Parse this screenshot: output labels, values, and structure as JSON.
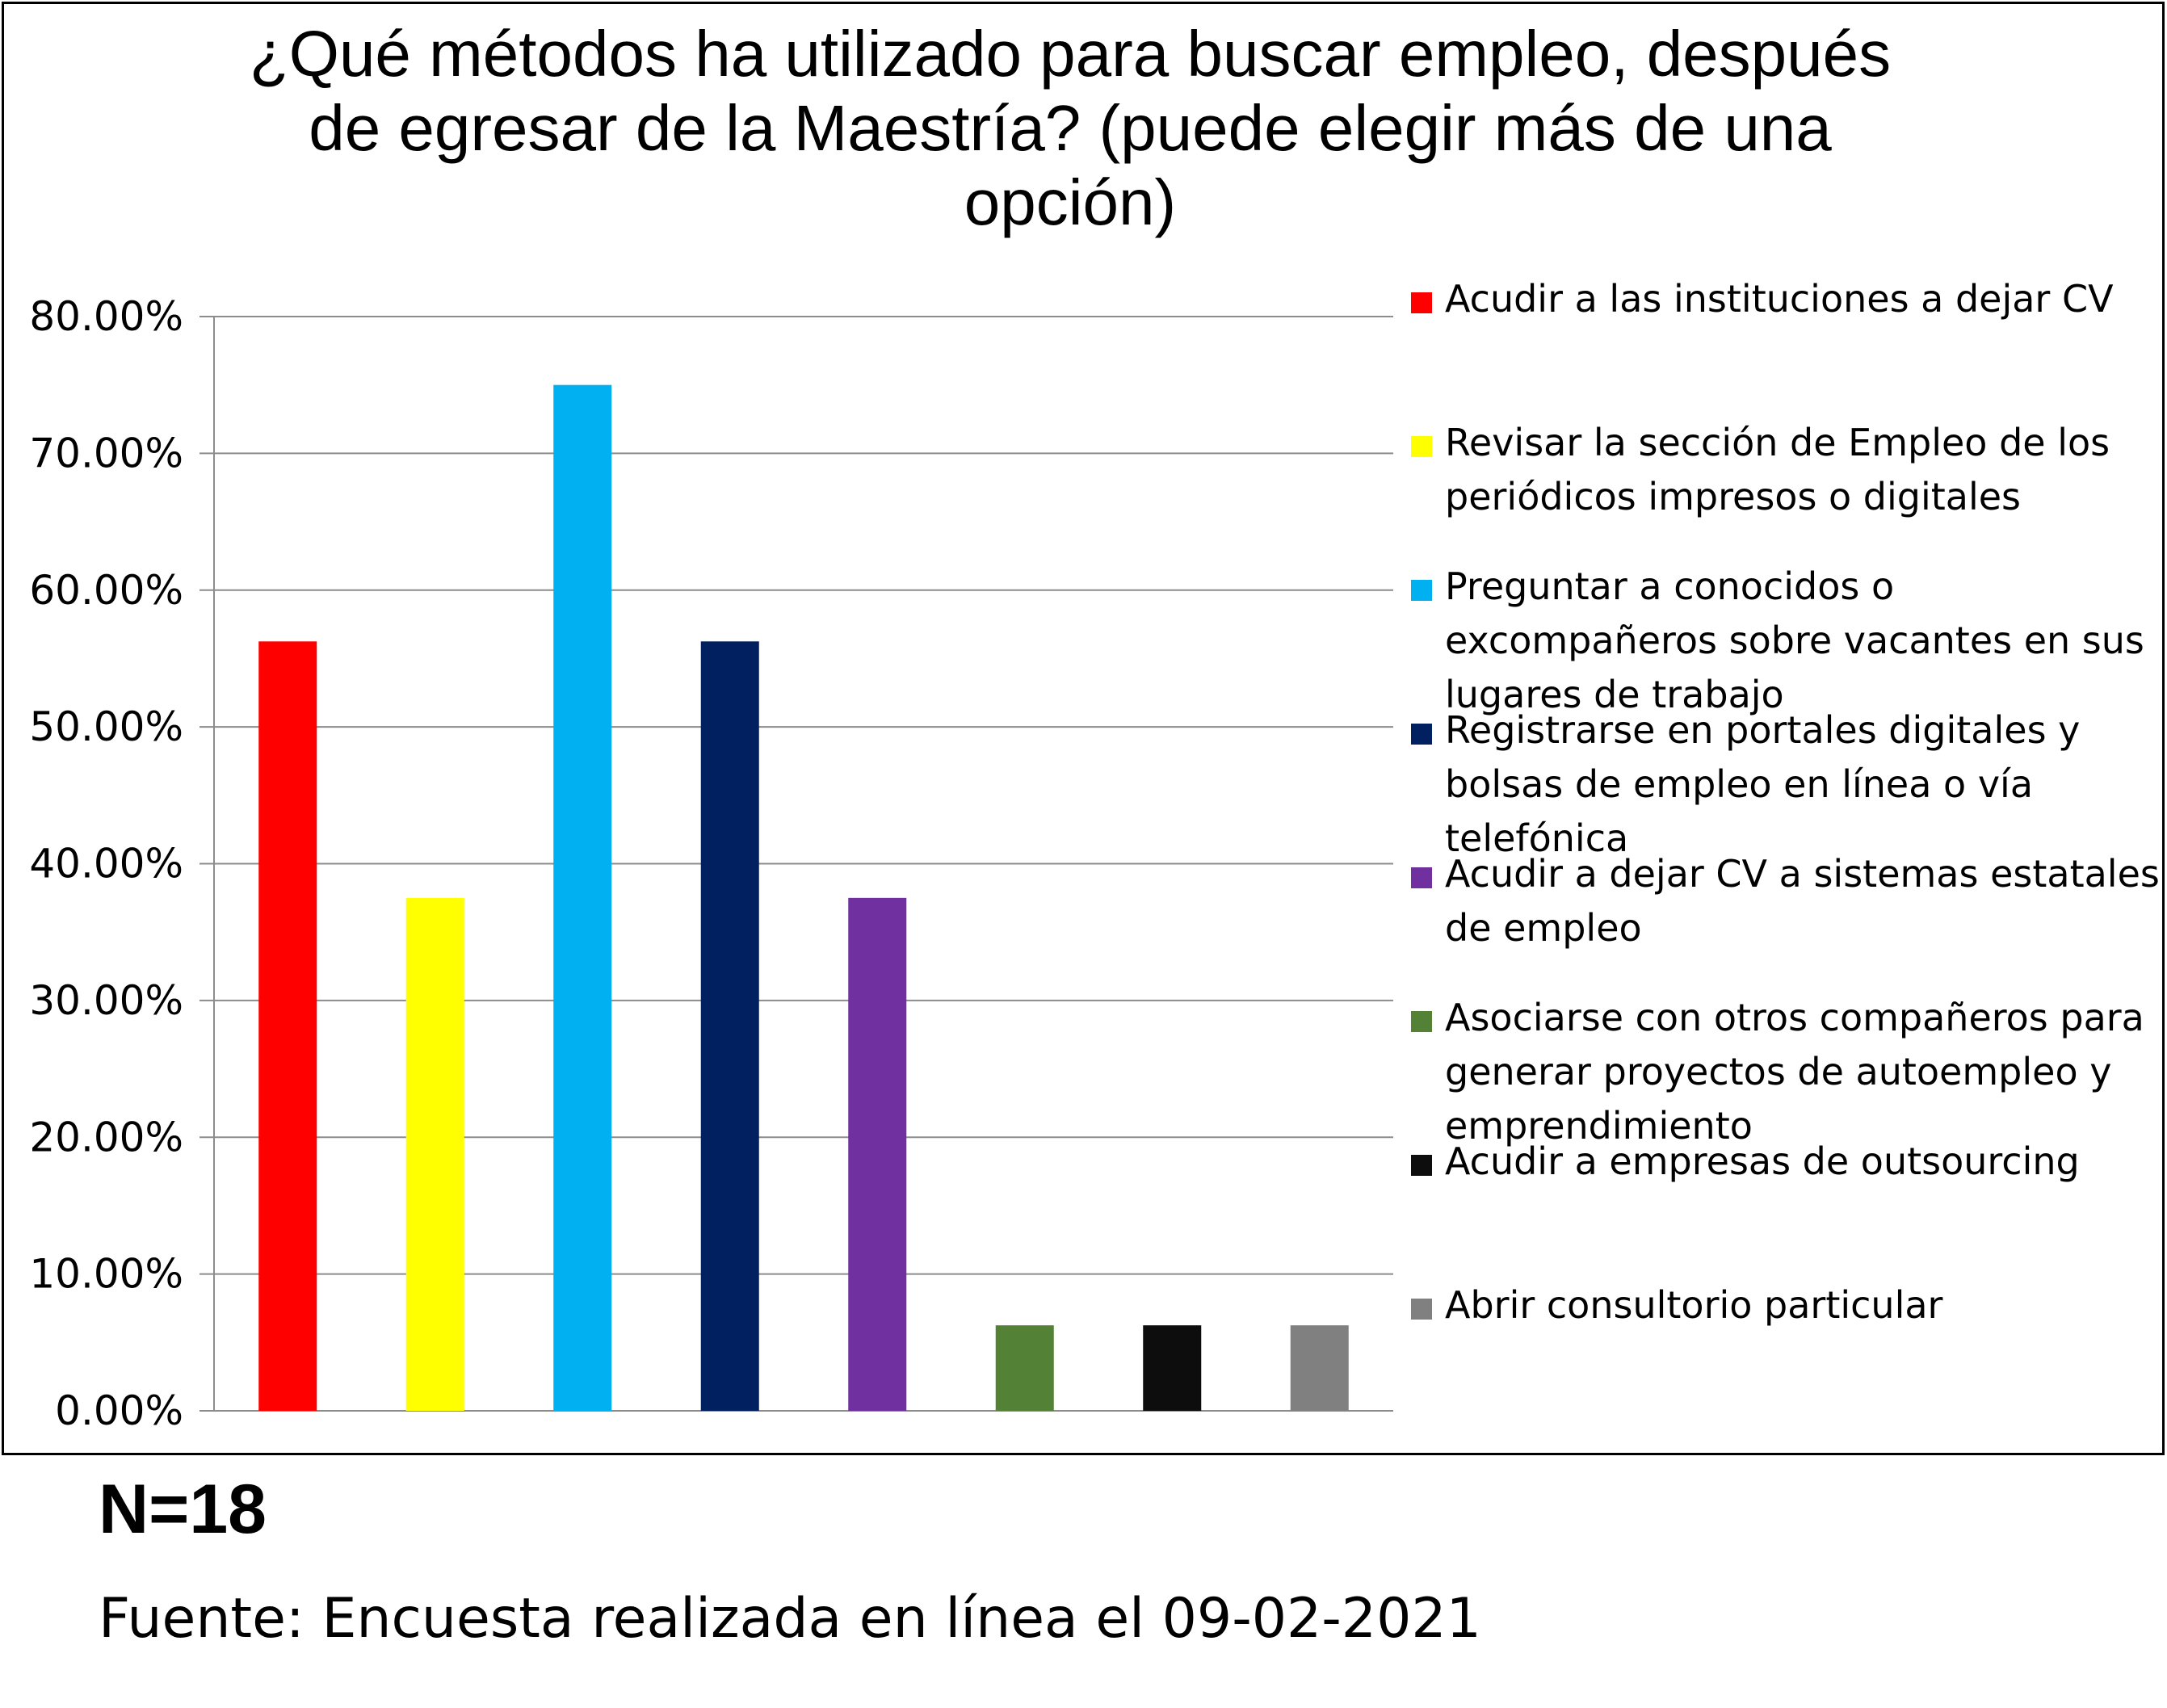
{
  "chart_data": {
    "type": "bar",
    "title": "¿Qué métodos ha utilizado para buscar empleo, después\nde egresar de la Maestría? (puede elegir más de una\nopción)",
    "xlabel": "",
    "ylabel": "",
    "ylim": [
      0,
      80
    ],
    "yticks": [
      "0.00%",
      "10.00%",
      "20.00%",
      "30.00%",
      "40.00%",
      "50.00%",
      "60.00%",
      "70.00%",
      "80.00%"
    ],
    "grid": true,
    "legend_position": "right",
    "categories": [
      "Acudir a las instituciones a dejar CV",
      "Revisar la sección de Empleo de los periódicos impresos o digitales",
      "Preguntar a conocidos o excompañeros sobre vacantes en sus lugares de trabajo",
      "Registrarse en portales digitales y bolsas de empleo en línea o vía telefónica",
      "Acudir a dejar CV a sistemas estatales de empleo",
      "Asociarse con otros compañeros para generar proyectos de autoempleo y emprendimiento",
      "Acudir a empresas de outsourcing",
      "Abrir consultorio particular"
    ],
    "values": [
      56.25,
      37.5,
      75.0,
      56.25,
      37.5,
      6.25,
      6.25,
      6.25
    ],
    "colors": [
      "#ff0000",
      "#ffff00",
      "#00b0f0",
      "#002060",
      "#7030a0",
      "#538135",
      "#0d0d0d",
      "#808080"
    ],
    "legend": [
      [
        "Acudir a las instituciones a dejar CV"
      ],
      [
        "Revisar la sección de Empleo de los",
        "periódicos impresos o digitales"
      ],
      [
        "Preguntar a conocidos o",
        "excompañeros sobre vacantes en sus",
        "lugares de trabajo"
      ],
      [
        "Registrarse en portales digitales y",
        "bolsas de empleo en línea o vía",
        "telefónica"
      ],
      [
        "Acudir a dejar CV a sistemas estatales",
        "de empleo"
      ],
      [
        "Asociarse con otros compañeros para",
        "generar proyectos de autoempleo y",
        "emprendimiento"
      ],
      [
        "Acudir a empresas de outsourcing"
      ],
      [
        "Abrir consultorio particular"
      ]
    ]
  },
  "footer": {
    "n_label": "N=18",
    "source": "Fuente: Encuesta realizada en línea el 09-02-2021"
  }
}
